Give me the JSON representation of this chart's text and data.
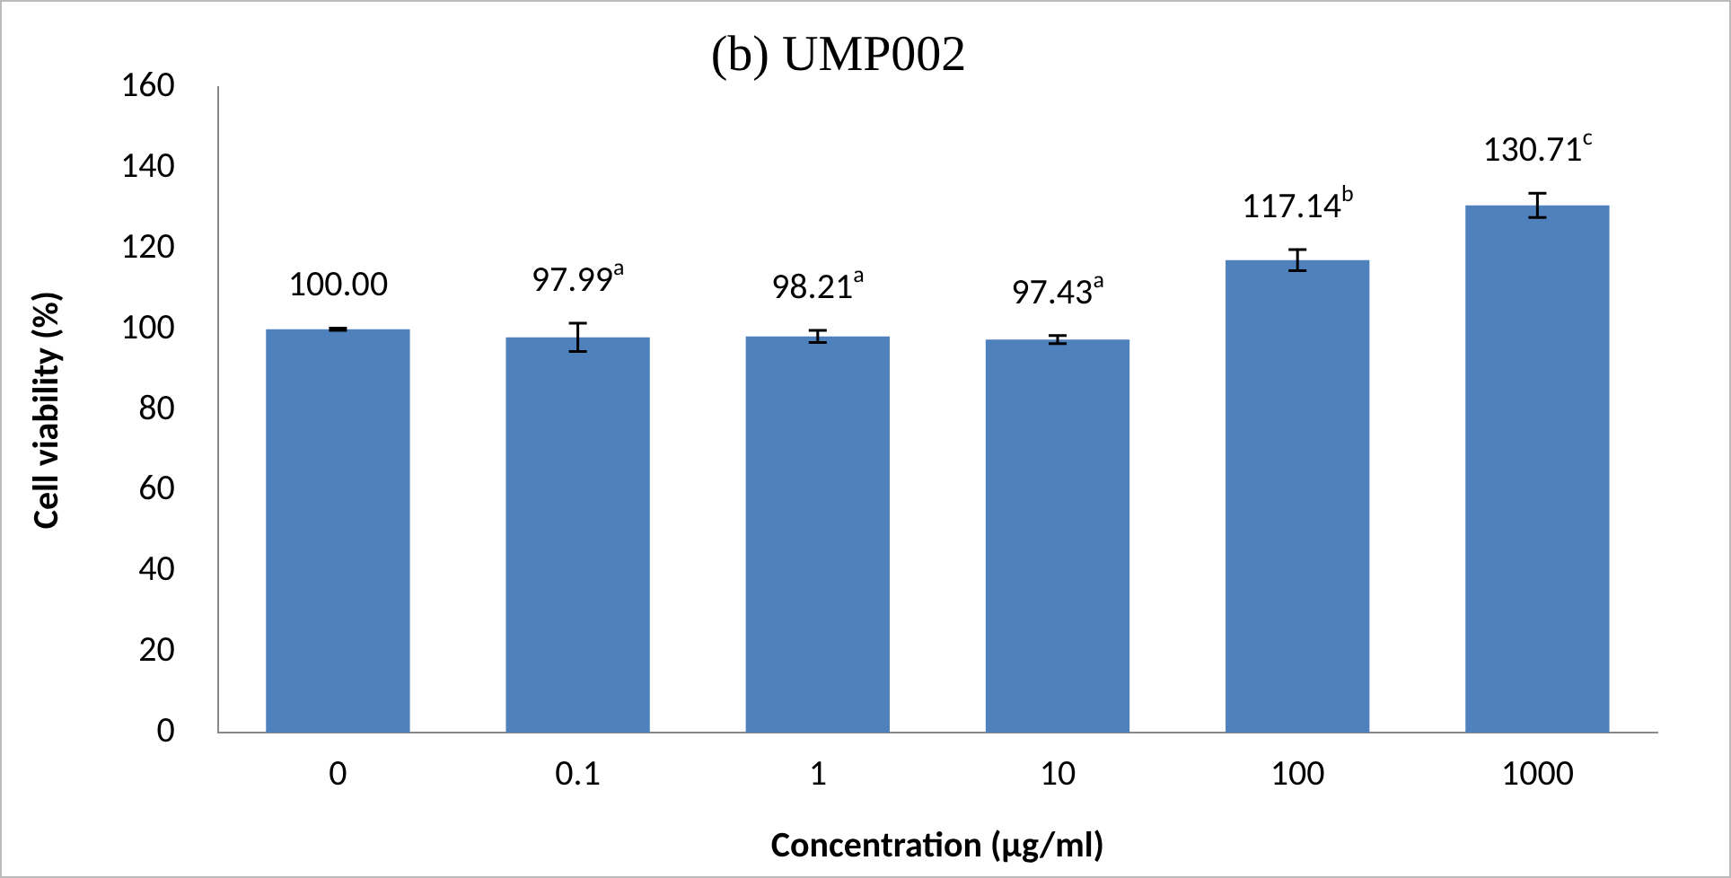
{
  "chart_data": {
    "type": "bar",
    "title": "(b) UMP002",
    "xlabel": "Concentration (µg/ml)",
    "ylabel": "Cell viability (%)",
    "categories": [
      "0",
      "0.1",
      "1",
      "10",
      "100",
      "1000"
    ],
    "values": [
      100.0,
      97.99,
      98.21,
      97.43,
      117.14,
      130.71
    ],
    "errors": [
      0.3,
      3.5,
      1.5,
      1,
      2.6,
      3
    ],
    "value_labels": [
      "100.00",
      "97.99$^{a}$",
      "98.21$^{a}$",
      "97.43$^{a}$",
      "117.14$^{b}$",
      "130.71$^{c}$"
    ],
    "color": "#4f81bd",
    "ylim": [
      0,
      160
    ],
    "yticks": [
      0,
      20,
      40,
      60,
      80,
      100,
      120,
      140,
      160
    ],
    "grid": false,
    "legend": false
  }
}
